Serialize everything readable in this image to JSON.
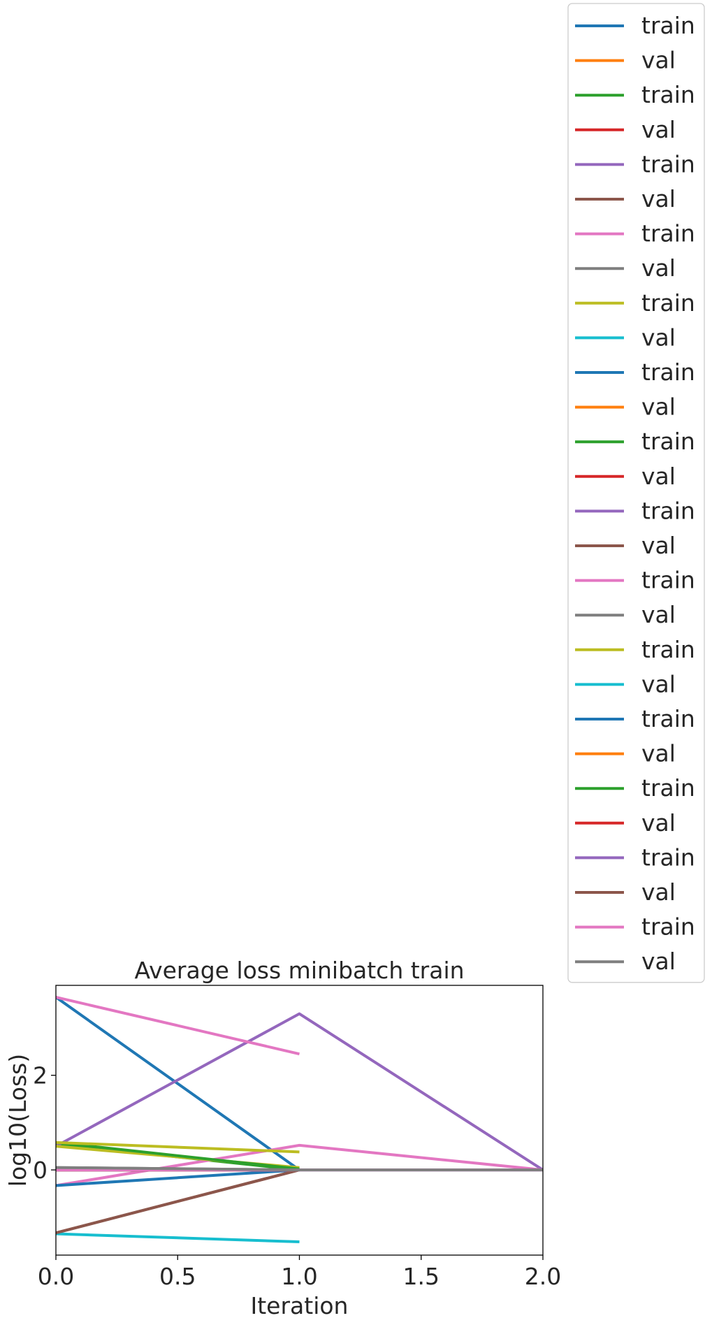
{
  "chart_data": {
    "type": "line",
    "title": "Average loss minibatch train",
    "xlabel": "Iteration",
    "ylabel": "log10(Loss)",
    "xlim": [
      0.0,
      2.0
    ],
    "ylim": [
      -1.8,
      3.9
    ],
    "xticks": [
      "0.0",
      "0.5",
      "1.0",
      "1.5",
      "2.0"
    ],
    "xtick_values": [
      0.0,
      0.5,
      1.0,
      1.5,
      2.0
    ],
    "yticks": [
      "0",
      "2"
    ],
    "ytick_values": [
      0,
      2
    ],
    "grid": false,
    "legend_placement": "outside-right",
    "series": [
      {
        "name": "train",
        "color": "#1f77b4",
        "x": [
          0,
          1
        ],
        "y": [
          3.65,
          0.0
        ]
      },
      {
        "name": "val",
        "color": "#ff7f0e",
        "x": [
          0,
          1
        ],
        "y": [
          0.02,
          0.0
        ]
      },
      {
        "name": "train",
        "color": "#2ca02c",
        "x": [
          0,
          1
        ],
        "y": [
          0.55,
          0.0
        ]
      },
      {
        "name": "val",
        "color": "#d62728",
        "x": [
          0,
          1
        ],
        "y": [
          0.03,
          0.0
        ]
      },
      {
        "name": "train",
        "color": "#9467bd",
        "x": [
          0,
          1,
          2
        ],
        "y": [
          0.5,
          3.3,
          0.0
        ]
      },
      {
        "name": "val",
        "color": "#8c564b",
        "x": [
          0,
          1
        ],
        "y": [
          -1.33,
          0.0
        ]
      },
      {
        "name": "train",
        "color": "#e377c2",
        "x": [
          0,
          1,
          2
        ],
        "y": [
          -0.33,
          0.52,
          0.0
        ]
      },
      {
        "name": "val",
        "color": "#7f7f7f",
        "x": [
          0,
          1
        ],
        "y": [
          0.05,
          0.0
        ]
      },
      {
        "name": "train",
        "color": "#bcbd22",
        "x": [
          0,
          1
        ],
        "y": [
          0.5,
          0.05
        ]
      },
      {
        "name": "val",
        "color": "#17becf",
        "x": [
          0,
          1
        ],
        "y": [
          -1.35,
          -1.52
        ]
      },
      {
        "name": "train",
        "color": "#1f77b4",
        "x": [
          0,
          1
        ],
        "y": [
          -0.33,
          0.0
        ]
      },
      {
        "name": "val",
        "color": "#ff7f0e",
        "x": [
          0,
          1
        ],
        "y": [
          0.0,
          0.0
        ]
      },
      {
        "name": "train",
        "color": "#2ca02c",
        "x": [
          0,
          1
        ],
        "y": [
          0.58,
          0.02
        ]
      },
      {
        "name": "val",
        "color": "#d62728",
        "x": [
          0,
          1
        ],
        "y": [
          0.0,
          0.0
        ]
      },
      {
        "name": "train",
        "color": "#9467bd",
        "x": [
          0,
          1,
          2
        ],
        "y": [
          0.0,
          0.0,
          0.0
        ]
      },
      {
        "name": "val",
        "color": "#8c564b",
        "x": [
          0,
          1
        ],
        "y": [
          -1.33,
          0.0
        ]
      },
      {
        "name": "train",
        "color": "#e377c2",
        "x": [
          0,
          1
        ],
        "y": [
          3.65,
          2.45
        ]
      },
      {
        "name": "val",
        "color": "#7f7f7f",
        "x": [
          0,
          1
        ],
        "y": [
          0.0,
          0.0
        ]
      },
      {
        "name": "train",
        "color": "#bcbd22",
        "x": [
          0,
          1
        ],
        "y": [
          0.58,
          0.38
        ]
      },
      {
        "name": "val",
        "color": "#17becf",
        "x": [
          0,
          1
        ],
        "y": [
          0.0,
          0.0
        ]
      },
      {
        "name": "train",
        "color": "#1f77b4",
        "x": [
          0,
          1
        ],
        "y": [
          0.02,
          0.0
        ]
      },
      {
        "name": "val",
        "color": "#ff7f0e",
        "x": [
          0,
          1
        ],
        "y": [
          0.0,
          0.0
        ]
      },
      {
        "name": "train",
        "color": "#2ca02c",
        "x": [
          0,
          1
        ],
        "y": [
          0.02,
          0.0
        ]
      },
      {
        "name": "val",
        "color": "#d62728",
        "x": [
          0,
          1
        ],
        "y": [
          0.0,
          0.0
        ]
      },
      {
        "name": "train",
        "color": "#9467bd",
        "x": [
          0,
          1,
          2
        ],
        "y": [
          0.0,
          0.0,
          0.0
        ]
      },
      {
        "name": "val",
        "color": "#8c564b",
        "x": [
          0,
          1
        ],
        "y": [
          0.0,
          0.0
        ]
      },
      {
        "name": "train",
        "color": "#e377c2",
        "x": [
          0,
          1,
          2
        ],
        "y": [
          0.0,
          0.0,
          0.0
        ]
      },
      {
        "name": "val",
        "color": "#7f7f7f",
        "x": [
          0,
          1,
          2
        ],
        "y": [
          0.05,
          0.0,
          0.0
        ]
      }
    ]
  }
}
